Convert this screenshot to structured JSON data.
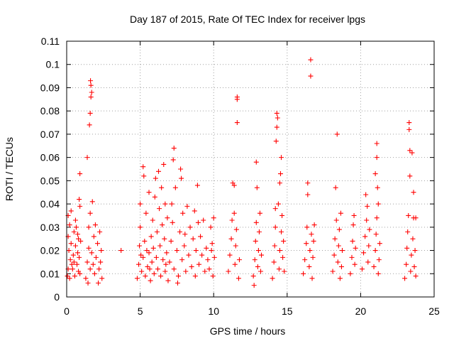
{
  "chart_data": {
    "type": "scatter",
    "title": "Day 187 of 2015, Rate Of TEC Index for receiver lpgs",
    "xlabel": "GPS time / hours",
    "ylabel": "ROTI / TECUs",
    "xlim": [
      0,
      25
    ],
    "ylim": [
      0,
      0.11
    ],
    "xticks": [
      0,
      5,
      10,
      15,
      20,
      25
    ],
    "yticks": [
      0,
      0.01,
      0.02,
      0.03,
      0.04,
      0.05,
      0.06,
      0.07,
      0.08,
      0.09,
      0.1,
      0.11
    ],
    "grid": true,
    "marker": "+",
    "color": "#ff0000",
    "series": [
      {
        "name": "ROTI",
        "points": [
          [
            0.05,
            0.009
          ],
          [
            0.1,
            0.012
          ],
          [
            0.15,
            0.02
          ],
          [
            0.1,
            0.026
          ],
          [
            0.2,
            0.031
          ],
          [
            0.25,
            0.016
          ],
          [
            0.3,
            0.023
          ],
          [
            0.2,
            0.008
          ],
          [
            0.35,
            0.014
          ],
          [
            0.1,
            0.035
          ],
          [
            0.4,
            0.012
          ],
          [
            0.45,
            0.018
          ],
          [
            0.5,
            0.015
          ],
          [
            0.55,
            0.009
          ],
          [
            0.6,
            0.022
          ],
          [
            0.65,
            0.03
          ],
          [
            0.7,
            0.014
          ],
          [
            0.75,
            0.019
          ],
          [
            0.8,
            0.011
          ],
          [
            0.5,
            0.028
          ],
          [
            0.85,
            0.017
          ],
          [
            0.9,
            0.01
          ],
          [
            0.8,
            0.025
          ],
          [
            0.85,
            0.042
          ],
          [
            0.9,
            0.039
          ],
          [
            0.9,
            0.053
          ],
          [
            0.95,
            0.024
          ],
          [
            0.3,
            0.037
          ],
          [
            0.6,
            0.033
          ],
          [
            0.75,
            0.027
          ],
          [
            1.3,
            0.008
          ],
          [
            1.4,
            0.015
          ],
          [
            1.5,
            0.021
          ],
          [
            1.5,
            0.03
          ],
          [
            1.6,
            0.012
          ],
          [
            1.6,
            0.036
          ],
          [
            1.4,
            0.06
          ],
          [
            1.55,
            0.074
          ],
          [
            1.6,
            0.079
          ],
          [
            1.65,
            0.086
          ],
          [
            1.65,
            0.091
          ],
          [
            1.62,
            0.093
          ],
          [
            1.7,
            0.088
          ],
          [
            1.7,
            0.019
          ],
          [
            1.8,
            0.014
          ],
          [
            1.85,
            0.026
          ],
          [
            1.75,
            0.041
          ],
          [
            1.9,
            0.01
          ],
          [
            2.0,
            0.017
          ],
          [
            2.1,
            0.023
          ],
          [
            2.2,
            0.012
          ],
          [
            2.25,
            0.028
          ],
          [
            2.3,
            0.015
          ],
          [
            2.35,
            0.02
          ],
          [
            2.4,
            0.008
          ],
          [
            1.45,
            0.006
          ],
          [
            1.95,
            0.031
          ],
          [
            2.15,
            0.006
          ],
          [
            3.7,
            0.02
          ],
          [
            4.8,
            0.008
          ],
          [
            4.9,
            0.014
          ],
          [
            4.95,
            0.022
          ],
          [
            5.0,
            0.03
          ],
          [
            5.0,
            0.04
          ],
          [
            5.1,
            0.011
          ],
          [
            5.2,
            0.017
          ],
          [
            5.2,
            0.056
          ],
          [
            5.25,
            0.052
          ],
          [
            5.3,
            0.024
          ],
          [
            5.35,
            0.009
          ],
          [
            5.4,
            0.036
          ],
          [
            5.5,
            0.013
          ],
          [
            5.6,
            0.019
          ],
          [
            5.6,
            0.045
          ],
          [
            5.7,
            0.007
          ],
          [
            5.75,
            0.026
          ],
          [
            5.8,
            0.015
          ],
          [
            5.85,
            0.033
          ],
          [
            5.9,
            0.021
          ],
          [
            5.95,
            0.01
          ],
          [
            6.0,
            0.043
          ],
          [
            6.05,
            0.051
          ],
          [
            6.1,
            0.017
          ],
          [
            6.15,
            0.028
          ],
          [
            6.2,
            0.012
          ],
          [
            6.25,
            0.054
          ],
          [
            6.3,
            0.038
          ],
          [
            6.35,
            0.022
          ],
          [
            6.4,
            0.009
          ],
          [
            6.45,
            0.047
          ],
          [
            6.5,
            0.031
          ],
          [
            6.55,
            0.016
          ],
          [
            6.6,
            0.057
          ],
          [
            6.65,
            0.025
          ],
          [
            6.7,
            0.011
          ],
          [
            6.7,
            0.04
          ],
          [
            6.8,
            0.019
          ],
          [
            6.85,
            0.034
          ],
          [
            5.05,
            0.018
          ],
          [
            5.45,
            0.02
          ],
          [
            5.65,
            0.012
          ],
          [
            6.75,
            0.014
          ],
          [
            6.9,
            0.007
          ],
          [
            7.0,
            0.015
          ],
          [
            7.1,
            0.024
          ],
          [
            7.2,
            0.032
          ],
          [
            7.25,
            0.059
          ],
          [
            7.3,
            0.064
          ],
          [
            7.3,
            0.012
          ],
          [
            7.4,
            0.047
          ],
          [
            7.5,
            0.02
          ],
          [
            7.6,
            0.009
          ],
          [
            7.7,
            0.028
          ],
          [
            7.75,
            0.055
          ],
          [
            7.8,
            0.051
          ],
          [
            7.85,
            0.016
          ],
          [
            7.9,
            0.036
          ],
          [
            8.0,
            0.022
          ],
          [
            8.1,
            0.011
          ],
          [
            8.2,
            0.039
          ],
          [
            8.3,
            0.018
          ],
          [
            8.4,
            0.03
          ],
          [
            8.5,
            0.013
          ],
          [
            8.6,
            0.025
          ],
          [
            8.7,
            0.037
          ],
          [
            8.75,
            0.009
          ],
          [
            8.8,
            0.02
          ],
          [
            8.9,
            0.048
          ],
          [
            8.95,
            0.032
          ],
          [
            7.15,
            0.04
          ],
          [
            7.55,
            0.006
          ],
          [
            8.05,
            0.027
          ],
          [
            9.0,
            0.014
          ],
          [
            9.1,
            0.026
          ],
          [
            9.2,
            0.018
          ],
          [
            9.3,
            0.033
          ],
          [
            9.4,
            0.011
          ],
          [
            9.5,
            0.021
          ],
          [
            9.6,
            0.016
          ],
          [
            9.7,
            0.012
          ],
          [
            9.8,
            0.03
          ],
          [
            9.9,
            0.023
          ],
          [
            9.95,
            0.009
          ],
          [
            10.0,
            0.034
          ],
          [
            10.05,
            0.017
          ],
          [
            9.85,
            0.02
          ],
          [
            11.0,
            0.011
          ],
          [
            11.1,
            0.018
          ],
          [
            11.2,
            0.025
          ],
          [
            11.25,
            0.033
          ],
          [
            11.3,
            0.049
          ],
          [
            11.4,
            0.036
          ],
          [
            11.45,
            0.014
          ],
          [
            11.5,
            0.022
          ],
          [
            11.55,
            0.029
          ],
          [
            11.6,
            0.085
          ],
          [
            11.6,
            0.086
          ],
          [
            11.6,
            0.075
          ],
          [
            11.7,
            0.008
          ],
          [
            11.75,
            0.016
          ],
          [
            11.4,
            0.048
          ],
          [
            12.7,
            0.009
          ],
          [
            12.8,
            0.016
          ],
          [
            12.85,
            0.024
          ],
          [
            12.9,
            0.032
          ],
          [
            12.9,
            0.058
          ],
          [
            12.95,
            0.047
          ],
          [
            13.0,
            0.013
          ],
          [
            13.05,
            0.02
          ],
          [
            13.1,
            0.028
          ],
          [
            13.15,
            0.036
          ],
          [
            13.2,
            0.011
          ],
          [
            13.25,
            0.018
          ],
          [
            12.75,
            0.005
          ],
          [
            14.0,
            0.008
          ],
          [
            14.1,
            0.015
          ],
          [
            14.15,
            0.022
          ],
          [
            14.2,
            0.03
          ],
          [
            14.25,
            0.067
          ],
          [
            14.3,
            0.073
          ],
          [
            14.3,
            0.079
          ],
          [
            14.35,
            0.077
          ],
          [
            14.4,
            0.04
          ],
          [
            14.45,
            0.012
          ],
          [
            14.5,
            0.02
          ],
          [
            14.5,
            0.049
          ],
          [
            14.55,
            0.053
          ],
          [
            14.6,
            0.028
          ],
          [
            14.6,
            0.06
          ],
          [
            14.65,
            0.035
          ],
          [
            14.7,
            0.017
          ],
          [
            14.75,
            0.024
          ],
          [
            14.8,
            0.011
          ],
          [
            14.2,
            0.038
          ],
          [
            16.1,
            0.01
          ],
          [
            16.2,
            0.016
          ],
          [
            16.3,
            0.023
          ],
          [
            16.35,
            0.03
          ],
          [
            16.4,
            0.044
          ],
          [
            16.4,
            0.049
          ],
          [
            16.5,
            0.013
          ],
          [
            16.55,
            0.02
          ],
          [
            16.6,
            0.102
          ],
          [
            16.6,
            0.095
          ],
          [
            16.65,
            0.027
          ],
          [
            16.7,
            0.008
          ],
          [
            16.75,
            0.017
          ],
          [
            16.8,
            0.024
          ],
          [
            16.85,
            0.031
          ],
          [
            18.1,
            0.011
          ],
          [
            18.2,
            0.018
          ],
          [
            18.25,
            0.025
          ],
          [
            18.3,
            0.047
          ],
          [
            18.35,
            0.033
          ],
          [
            18.4,
            0.07
          ],
          [
            18.45,
            0.015
          ],
          [
            18.5,
            0.022
          ],
          [
            18.55,
            0.029
          ],
          [
            18.6,
            0.008
          ],
          [
            18.65,
            0.036
          ],
          [
            18.7,
            0.013
          ],
          [
            18.75,
            0.02
          ],
          [
            19.3,
            0.01
          ],
          [
            19.4,
            0.017
          ],
          [
            19.45,
            0.024
          ],
          [
            19.5,
            0.031
          ],
          [
            19.55,
            0.035
          ],
          [
            19.6,
            0.014
          ],
          [
            19.65,
            0.021
          ],
          [
            20.1,
            0.012
          ],
          [
            20.2,
            0.019
          ],
          [
            20.3,
            0.026
          ],
          [
            20.35,
            0.044
          ],
          [
            20.4,
            0.033
          ],
          [
            20.45,
            0.039
          ],
          [
            20.5,
            0.015
          ],
          [
            20.55,
            0.022
          ],
          [
            20.6,
            0.029
          ],
          [
            20.9,
            0.013
          ],
          [
            21.0,
            0.02
          ],
          [
            21.05,
            0.027
          ],
          [
            21.1,
            0.034
          ],
          [
            21.1,
            0.06
          ],
          [
            21.1,
            0.066
          ],
          [
            21.15,
            0.047
          ],
          [
            21.2,
            0.04
          ],
          [
            21.25,
            0.016
          ],
          [
            21.3,
            0.023
          ],
          [
            21.0,
            0.053
          ],
          [
            21.2,
            0.01
          ],
          [
            23.0,
            0.008
          ],
          [
            23.1,
            0.014
          ],
          [
            23.15,
            0.021
          ],
          [
            23.2,
            0.028
          ],
          [
            23.25,
            0.035
          ],
          [
            23.3,
            0.075
          ],
          [
            23.3,
            0.072
          ],
          [
            23.35,
            0.063
          ],
          [
            23.35,
            0.052
          ],
          [
            23.4,
            0.011
          ],
          [
            23.45,
            0.018
          ],
          [
            23.5,
            0.062
          ],
          [
            23.55,
            0.025
          ],
          [
            23.6,
            0.045
          ],
          [
            23.6,
            0.034
          ],
          [
            23.65,
            0.013
          ],
          [
            23.7,
            0.02
          ],
          [
            23.75,
            0.009
          ],
          [
            23.75,
            0.034
          ]
        ]
      }
    ]
  }
}
